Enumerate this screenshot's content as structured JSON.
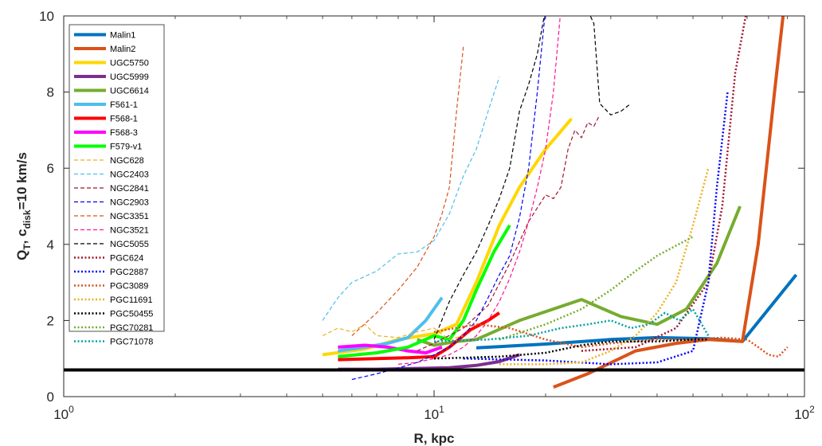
{
  "chart_data": {
    "type": "line",
    "title": "",
    "xlabel": "R, kpc",
    "ylabel_main": "Q",
    "ylabel_sub1": "T",
    "ylabel_mid": ", c",
    "ylabel_sub2": "disk",
    "ylabel_end": "=10 km/s",
    "xscale": "log",
    "xlim": [
      1,
      100
    ],
    "ylim": [
      0,
      10
    ],
    "x_ticks": [
      1,
      10,
      100
    ],
    "x_tick_labels": [
      {
        "base": "10",
        "exp": "0"
      },
      {
        "base": "10",
        "exp": "1"
      },
      {
        "base": "10",
        "exp": "2"
      }
    ],
    "y_ticks": [
      0,
      2,
      4,
      6,
      8,
      10
    ],
    "y_tick_labels": [
      "0",
      "2",
      "4",
      "6",
      "8",
      "10"
    ],
    "grid": false,
    "legend_position": "upper-left",
    "reference_line": {
      "y": 0.7,
      "color": "#000000"
    },
    "series": [
      {
        "name": "Malin1",
        "color": "#0072BD",
        "style": "solid",
        "width": 4,
        "x": [
          13,
          20,
          30,
          40,
          55,
          68,
          95
        ],
        "y": [
          1.28,
          1.38,
          1.5,
          1.55,
          1.52,
          1.45,
          3.2
        ]
      },
      {
        "name": "Malin2",
        "color": "#D95319",
        "style": "solid",
        "width": 4,
        "x": [
          21,
          26,
          35,
          45,
          55,
          68,
          75,
          83,
          88
        ],
        "y": [
          0.25,
          0.6,
          1.2,
          1.4,
          1.5,
          1.45,
          4,
          8,
          10.2
        ]
      },
      {
        "name": "UGC5750",
        "color": "#FFD700",
        "style": "solid",
        "width": 4,
        "x": [
          5,
          6.5,
          8,
          10,
          11.5,
          13,
          15,
          17,
          20,
          23.5
        ],
        "y": [
          1.1,
          1.25,
          1.5,
          1.65,
          1.9,
          3,
          4.5,
          5.5,
          6.5,
          7.3
        ]
      },
      {
        "name": "UGC5999",
        "color": "#7E2F8E",
        "style": "solid",
        "width": 4,
        "x": [
          5.5,
          7,
          9,
          11,
          13,
          15,
          17
        ],
        "y": [
          0.72,
          0.72,
          0.74,
          0.76,
          0.82,
          0.92,
          1.1
        ]
      },
      {
        "name": "UGC6614",
        "color": "#77AC30",
        "style": "solid",
        "width": 4,
        "x": [
          9,
          10,
          11.5,
          13,
          17,
          25,
          32,
          40,
          48,
          58,
          67
        ],
        "y": [
          1.5,
          1.35,
          1.45,
          1.5,
          2.0,
          2.55,
          2.1,
          1.9,
          2.3,
          3.5,
          5.0
        ]
      },
      {
        "name": "F561-1",
        "color": "#4DBEEE",
        "style": "solid",
        "width": 4,
        "x": [
          5.5,
          6.5,
          7.5,
          8.5,
          9.5,
          10.5
        ],
        "y": [
          1.2,
          1.3,
          1.4,
          1.55,
          2.0,
          2.6
        ]
      },
      {
        "name": "F568-1",
        "color": "#FF0000",
        "style": "solid",
        "width": 4,
        "x": [
          5.5,
          7,
          8.5,
          10,
          11,
          12.5,
          14,
          15
        ],
        "y": [
          0.97,
          1.0,
          1.02,
          1.05,
          1.3,
          1.75,
          2.0,
          2.2
        ]
      },
      {
        "name": "F568-3",
        "color": "#FF00FF",
        "style": "solid",
        "width": 4,
        "x": [
          5.5,
          6.5,
          7.5,
          8.5,
          9.5,
          10.5
        ],
        "y": [
          1.3,
          1.35,
          1.3,
          1.2,
          1.15,
          1.3
        ]
      },
      {
        "name": "F579-v1",
        "color": "#00FF00",
        "style": "solid",
        "width": 4,
        "x": [
          5.5,
          7,
          8.5,
          10,
          11,
          12,
          13,
          14.5,
          16
        ],
        "y": [
          1.05,
          1.15,
          1.3,
          1.6,
          1.5,
          2.0,
          2.8,
          3.8,
          4.5
        ]
      },
      {
        "name": "NGC628",
        "color": "#EDB120",
        "style": "dashed",
        "width": 1.2,
        "x": [
          5,
          5.5,
          6,
          6.5,
          7,
          8,
          9,
          10,
          11,
          12
        ],
        "y": [
          1.6,
          1.8,
          1.7,
          1.9,
          1.6,
          1.55,
          1.7,
          1.8,
          1.5,
          1.6
        ]
      },
      {
        "name": "NGC2403",
        "color": "#4DBEEE",
        "style": "dashed",
        "width": 1.2,
        "x": [
          5,
          5.5,
          6,
          7,
          8,
          9,
          10,
          11,
          12,
          13,
          14,
          15
        ],
        "y": [
          2.0,
          2.6,
          3.0,
          3.3,
          3.75,
          3.8,
          4.1,
          4.8,
          5.8,
          6.5,
          7.5,
          8.4
        ]
      },
      {
        "name": "NGC2841",
        "color": "#A2142F",
        "style": "dashed",
        "width": 1.2,
        "x": [
          9,
          10,
          12,
          14,
          16,
          18,
          20,
          21,
          22,
          23,
          24,
          25,
          26,
          27,
          28
        ],
        "y": [
          1.2,
          1.4,
          1.8,
          2.4,
          3.5,
          4.6,
          5.3,
          5.2,
          5.5,
          6.5,
          7.0,
          6.8,
          7.2,
          7.1,
          7.4
        ]
      },
      {
        "name": "NGC2903",
        "color": "#0000FF",
        "style": "dashed",
        "width": 1.2,
        "x": [
          6,
          7,
          8,
          9,
          10,
          11,
          12,
          13,
          14,
          15,
          16,
          17,
          18,
          19,
          20
        ],
        "y": [
          0.45,
          0.6,
          0.75,
          0.9,
          1.1,
          1.3,
          1.6,
          2.0,
          2.6,
          3.2,
          3.7,
          4.7,
          6.0,
          8.0,
          10.2
        ]
      },
      {
        "name": "NGC3351",
        "color": "#D95319",
        "style": "dashed",
        "width": 1.2,
        "x": [
          6,
          7,
          8,
          9,
          10,
          10.5,
          11,
          11.5,
          12
        ],
        "y": [
          1.6,
          2.2,
          2.8,
          3.4,
          4.2,
          4.8,
          5.5,
          7.5,
          9.2
        ]
      },
      {
        "name": "NGC3521",
        "color": "#FF1493",
        "style": "dashed",
        "width": 1.2,
        "x": [
          8,
          9,
          10,
          11,
          12,
          13,
          14,
          15,
          16,
          17,
          18,
          19,
          20,
          21,
          22
        ],
        "y": [
          0.85,
          0.9,
          1.0,
          1.1,
          1.3,
          1.6,
          2.0,
          2.5,
          3.1,
          3.8,
          4.6,
          5.5,
          6.5,
          8.0,
          10.2
        ]
      },
      {
        "name": "NGC5055",
        "color": "#000000",
        "style": "dashed",
        "width": 1.2,
        "x": [
          10,
          11,
          12,
          13,
          14,
          15,
          16,
          17,
          18,
          19,
          20,
          21,
          22,
          23,
          25,
          27,
          28,
          30,
          32,
          34
        ],
        "y": [
          1.5,
          2.5,
          3.2,
          3.8,
          4.5,
          5.2,
          6.0,
          7.5,
          8.2,
          9.0,
          10.2,
          10.5,
          10.5,
          10.3,
          10.5,
          9.8,
          7.7,
          7.4,
          7.5,
          7.7
        ]
      },
      {
        "name": "PGC624",
        "color": "#A2142F",
        "style": "dotted",
        "width": 2.5,
        "x": [
          25,
          35,
          45,
          55,
          60,
          65,
          70
        ],
        "y": [
          1.2,
          1.3,
          1.8,
          3.0,
          5.0,
          8.5,
          10.2
        ]
      },
      {
        "name": "PGC2887",
        "color": "#0000FF",
        "style": "dotted",
        "width": 2.5,
        "x": [
          12,
          20,
          30,
          40,
          50,
          55,
          58,
          62
        ],
        "y": [
          1.0,
          0.95,
          0.85,
          0.9,
          1.2,
          3.0,
          5.5,
          8.0
        ]
      },
      {
        "name": "PGC3089",
        "color": "#D95319",
        "style": "dotted",
        "width": 2.5,
        "x": [
          10,
          13,
          16,
          20,
          25,
          30,
          40,
          50,
          60,
          70,
          75,
          80,
          85,
          90
        ],
        "y": [
          1.7,
          1.9,
          1.8,
          1.5,
          1.3,
          1.4,
          1.5,
          1.5,
          1.55,
          1.5,
          1.3,
          1.1,
          1.05,
          1.3
        ]
      },
      {
        "name": "PGC11691",
        "color": "#EDB120",
        "style": "dotted",
        "width": 2.5,
        "x": [
          15,
          20,
          25,
          30,
          35,
          40,
          45,
          50,
          55
        ],
        "y": [
          0.85,
          0.85,
          0.9,
          1.2,
          1.6,
          2.2,
          3.0,
          4.5,
          6.0
        ]
      },
      {
        "name": "PGC50455",
        "color": "#000000",
        "style": "dotted",
        "width": 2.5,
        "x": [
          10,
          15,
          20,
          25,
          30,
          40,
          50,
          55
        ],
        "y": [
          1.0,
          1.05,
          1.15,
          1.35,
          1.45,
          1.45,
          1.5,
          1.5
        ]
      },
      {
        "name": "PGC70281",
        "color": "#77AC30",
        "style": "dotted",
        "width": 2.5,
        "x": [
          15,
          20,
          25,
          30,
          35,
          40,
          50
        ],
        "y": [
          1.5,
          1.9,
          2.3,
          2.8,
          3.3,
          3.7,
          4.2
        ]
      },
      {
        "name": "PGC71078",
        "color": "#00A0A0",
        "style": "dotted",
        "width": 2.5,
        "x": [
          10,
          14,
          18,
          22,
          26,
          30,
          34,
          38,
          42,
          46,
          50,
          55
        ],
        "y": [
          1.45,
          1.5,
          1.6,
          1.8,
          1.9,
          2.0,
          1.8,
          1.9,
          2.2,
          2.0,
          2.3,
          1.6
        ]
      }
    ]
  }
}
